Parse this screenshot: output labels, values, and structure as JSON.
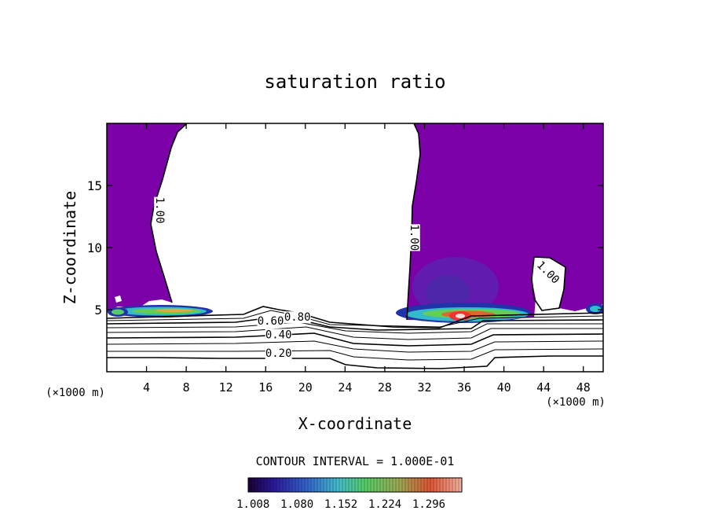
{
  "chart_data": {
    "type": "heatmap",
    "title": "saturation ratio",
    "xlabel": "X-coordinate",
    "ylabel": "Z-coordinate",
    "x_unit_left": "(×1000 m)",
    "x_unit_right": "(×1000 m)",
    "xlim": [
      0,
      50
    ],
    "ylim": [
      0,
      20
    ],
    "x_ticks": [
      4,
      8,
      12,
      16,
      20,
      24,
      28,
      32,
      36,
      40,
      44,
      48
    ],
    "y_ticks": [
      5,
      10,
      15
    ],
    "contour_interval_text": "CONTOUR INTERVAL = 1.000E-01",
    "contour_labels": [
      {
        "text": "0.20",
        "x": 17.3,
        "y": 1.2
      },
      {
        "text": "0.40",
        "x": 17.3,
        "y": 2.7
      },
      {
        "text": "0.60",
        "x": 16.5,
        "y": 3.8
      },
      {
        "text": "0.80",
        "x": 19.2,
        "y": 4.1
      },
      {
        "text": "1.00",
        "x": 5.0,
        "y": 13.0,
        "rotate": 90
      },
      {
        "text": "1.00",
        "x": 30.6,
        "y": 10.8,
        "rotate": 90
      },
      {
        "text": "1.00",
        "x": 44.2,
        "y": 7.8,
        "rotate": 45
      }
    ],
    "colorbar": {
      "min": 1.0,
      "max": 1.35,
      "tick_values": [
        1.008,
        1.08,
        1.152,
        1.224,
        1.296
      ],
      "tick_labels": [
        "1.008",
        "1.080",
        "1.152",
        "1.224",
        "1.296"
      ]
    },
    "regions": {
      "supersaturated_color": "#7b00a8",
      "subsaturated_color": "#ffffff"
    }
  }
}
